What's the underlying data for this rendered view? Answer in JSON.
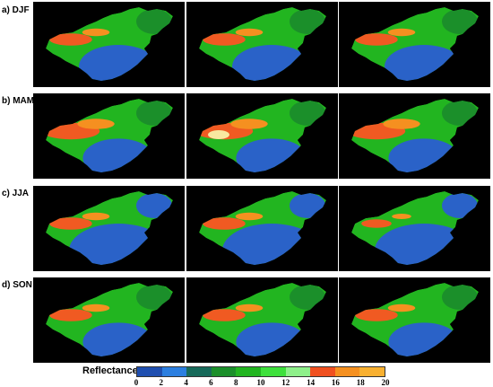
{
  "rows": [
    {
      "label": "a) DJF",
      "season": "DJF"
    },
    {
      "label": "b) MAM",
      "season": "MAM"
    },
    {
      "label": "c) JJA",
      "season": "JJA"
    },
    {
      "label": "d) SON",
      "season": "SON"
    }
  ],
  "colorbar": {
    "title": "Reflectance",
    "ticks": [
      "0",
      "2",
      "4",
      "6",
      "8",
      "10",
      "12",
      "14",
      "16",
      "18",
      "20"
    ],
    "colors": [
      "#1f4fb0",
      "#2c7fe0",
      "#176a5a",
      "#1b8f2a",
      "#22b520",
      "#3ee03c",
      "#8ef08a",
      "#f05020",
      "#f59020",
      "#f8b030",
      "#f8e8a0"
    ]
  }
}
